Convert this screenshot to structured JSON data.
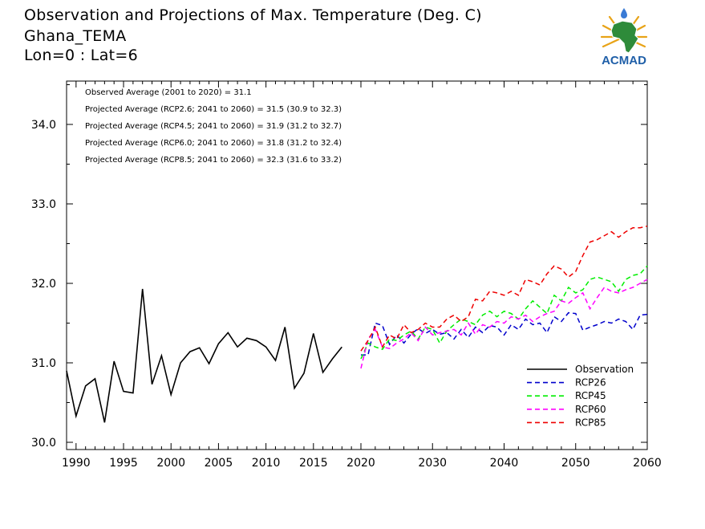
{
  "title": {
    "line1": "Observation and Projections of Max. Temperature (Deg. C)",
    "line2": "Ghana_TEMA",
    "line3": "Lon=0 : Lat=6"
  },
  "logo": {
    "text": "ACMAD",
    "colors": {
      "text": "#1f5fa8",
      "map": "#2e8b3a",
      "rays": "#e8a317",
      "drop": "#3a7bd5"
    }
  },
  "colors": {
    "Observation": "#000000",
    "RCP26": "#0000cc",
    "RCP45": "#00ee00",
    "RCP60": "#ff00ff",
    "RCP85": "#ee0000"
  },
  "chart_data": {
    "type": "line",
    "title": "Observation and Projections of Max. Temperature (Deg. C)",
    "xlabel": "",
    "ylabel": "",
    "xlim": [
      1989,
      2060
    ],
    "ylim": [
      29.9,
      34.6
    ],
    "xticks": [
      1990,
      1995,
      2000,
      2005,
      2010,
      2015,
      2020,
      2030,
      2040,
      2050,
      2060
    ],
    "yticks": [
      30.0,
      31.0,
      32.0,
      33.0,
      34.0
    ],
    "ytick_labels": [
      "30.0",
      "31.0",
      "32.0",
      "33.0",
      "34.0"
    ],
    "x_axis_note": "piecewise scale: 1989-2020 wider spacing, 2020-2060 compressed",
    "grid": false,
    "legend_position": "bottom-right",
    "annotations": [
      "Observed Average (2001 to 2020) = 31.1",
      "Projected Average (RCP2.6; 2041 to 2060) = 31.5 (30.9 to 32.3)",
      "Projected Average (RCP4.5; 2041 to 2060) = 31.9 (31.2 to 32.7)",
      "Projected Average (RCP6.0; 2041 to 2060) = 31.8 (31.2 to 32.4)",
      "Projected Average (RCP8.5; 2041 to 2060) = 32.3 (31.6 to 33.2)"
    ],
    "series": [
      {
        "name": "Observation",
        "style": "solid",
        "x": [
          1989,
          1990,
          1991,
          1992,
          1993,
          1994,
          1995,
          1996,
          1997,
          1998,
          1999,
          2000,
          2001,
          2002,
          2003,
          2004,
          2005,
          2006,
          2007,
          2008,
          2009,
          2010,
          2011,
          2012,
          2013,
          2014,
          2015,
          2016,
          2017,
          2018,
          2019
        ],
        "values": [
          30.9,
          30.33,
          30.71,
          30.8,
          30.25,
          31.02,
          30.64,
          30.62,
          31.93,
          30.73,
          31.09,
          30.6,
          31.0,
          31.14,
          31.19,
          30.99,
          31.24,
          31.38,
          31.2,
          31.31,
          31.28,
          31.2,
          31.03,
          31.45,
          30.68,
          30.87,
          31.37,
          30.88,
          31.05,
          31.2,
          null
        ]
      },
      {
        "name": "RCP26",
        "style": "dashed",
        "x": [
          2020,
          2021,
          2022,
          2023,
          2024,
          2025,
          2026,
          2027,
          2028,
          2029,
          2030,
          2031,
          2032,
          2033,
          2034,
          2035,
          2036,
          2037,
          2038,
          2039,
          2040,
          2041,
          2042,
          2043,
          2044,
          2045,
          2046,
          2047,
          2048,
          2049,
          2050,
          2051,
          2052,
          2053,
          2054,
          2055,
          2056,
          2057,
          2058,
          2059,
          2060
        ],
        "values": [
          31.1,
          31.1,
          31.5,
          31.47,
          31.23,
          31.35,
          31.25,
          31.36,
          31.43,
          31.37,
          31.42,
          31.36,
          31.38,
          31.3,
          31.42,
          31.32,
          31.45,
          31.38,
          31.47,
          31.45,
          31.35,
          31.48,
          31.42,
          31.55,
          31.48,
          31.5,
          31.38,
          31.58,
          31.52,
          31.63,
          31.62,
          31.41,
          31.45,
          31.48,
          31.52,
          31.5,
          31.55,
          31.52,
          31.42,
          31.6,
          31.61
        ]
      },
      {
        "name": "RCP45",
        "style": "dashed",
        "x": [
          2020,
          2021,
          2022,
          2023,
          2024,
          2025,
          2026,
          2027,
          2028,
          2029,
          2030,
          2031,
          2032,
          2033,
          2034,
          2035,
          2036,
          2037,
          2038,
          2039,
          2040,
          2041,
          2042,
          2043,
          2044,
          2045,
          2046,
          2047,
          2048,
          2049,
          2050,
          2051,
          2052,
          2053,
          2054,
          2055,
          2056,
          2057,
          2058,
          2059,
          2060
        ],
        "values": [
          31.05,
          31.25,
          31.2,
          31.17,
          31.3,
          31.28,
          31.35,
          31.4,
          31.3,
          31.45,
          31.42,
          31.25,
          31.4,
          31.48,
          31.55,
          31.52,
          31.48,
          31.6,
          31.65,
          31.58,
          31.65,
          31.62,
          31.55,
          31.68,
          31.78,
          31.7,
          31.62,
          31.85,
          31.78,
          31.95,
          31.88,
          31.92,
          32.05,
          32.08,
          32.05,
          32.02,
          31.9,
          32.05,
          32.1,
          32.12,
          32.22
        ]
      },
      {
        "name": "RCP60",
        "style": "dashed",
        "x": [
          2020,
          2021,
          2022,
          2023,
          2024,
          2025,
          2026,
          2027,
          2028,
          2029,
          2030,
          2031,
          2032,
          2033,
          2034,
          2035,
          2036,
          2037,
          2038,
          2039,
          2040,
          2041,
          2042,
          2043,
          2044,
          2045,
          2046,
          2047,
          2048,
          2049,
          2050,
          2051,
          2052,
          2053,
          2054,
          2055,
          2056,
          2057,
          2058,
          2059,
          2060
        ],
        "values": [
          30.93,
          31.3,
          31.42,
          31.2,
          31.18,
          31.25,
          31.3,
          31.38,
          31.28,
          31.45,
          31.35,
          31.38,
          31.4,
          31.42,
          31.35,
          31.5,
          31.36,
          31.48,
          31.45,
          31.52,
          31.5,
          31.58,
          31.55,
          31.6,
          31.52,
          31.58,
          31.62,
          31.65,
          31.78,
          31.75,
          31.82,
          31.88,
          31.68,
          31.82,
          31.95,
          31.9,
          31.88,
          31.92,
          31.95,
          32.0,
          32.05
        ]
      },
      {
        "name": "RCP85",
        "style": "dashed",
        "x": [
          2020,
          2021,
          2022,
          2023,
          2024,
          2025,
          2026,
          2027,
          2028,
          2029,
          2030,
          2031,
          2032,
          2033,
          2034,
          2035,
          2036,
          2037,
          2038,
          2039,
          2040,
          2041,
          2042,
          2043,
          2044,
          2045,
          2046,
          2047,
          2048,
          2049,
          2050,
          2051,
          2052,
          2053,
          2054,
          2055,
          2056,
          2057,
          2058,
          2059,
          2060
        ],
        "values": [
          31.15,
          31.28,
          31.45,
          31.2,
          31.35,
          31.3,
          31.48,
          31.38,
          31.42,
          31.5,
          31.45,
          31.45,
          31.55,
          31.6,
          31.52,
          31.58,
          31.8,
          31.78,
          31.9,
          31.88,
          31.85,
          31.9,
          31.85,
          32.05,
          32.02,
          31.98,
          32.12,
          32.22,
          32.18,
          32.08,
          32.15,
          32.35,
          32.52,
          32.55,
          32.6,
          32.65,
          32.58,
          32.65,
          32.7,
          32.7,
          32.72
        ]
      }
    ]
  }
}
